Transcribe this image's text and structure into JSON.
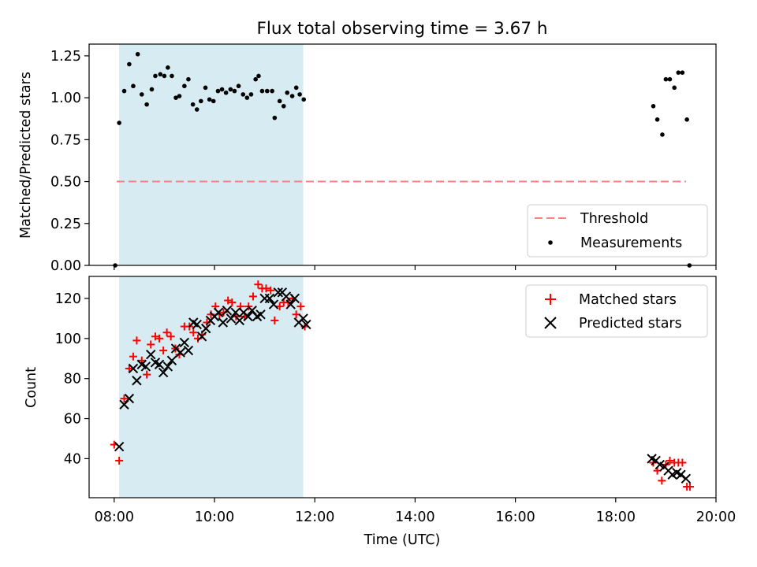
{
  "title": "Flux total observing time = 3.67 h",
  "top_panel": {
    "ylabel": "Matched/Predicted stars",
    "yticks": [
      "0.00",
      "0.25",
      "0.50",
      "0.75",
      "1.00",
      "1.25"
    ],
    "legend": {
      "threshold_label": "Threshold",
      "measurements_label": "Measurements"
    }
  },
  "bottom_panel": {
    "ylabel": "Count",
    "xlabel": "Time (UTC)",
    "yticks": [
      "40",
      "60",
      "80",
      "100",
      "120"
    ],
    "xticks": [
      "08:00",
      "10:00",
      "12:00",
      "14:00",
      "16:00",
      "18:00",
      "20:00"
    ],
    "legend": {
      "matched_label": "Matched stars",
      "predicted_label": "Predicted stars"
    }
  },
  "colors": {
    "shade": "#add8e6",
    "threshold": "#ff7f7f",
    "measurements": "#000000",
    "matched": "#ff0000",
    "predicted": "#000000"
  },
  "chart_data": [
    {
      "type": "scatter",
      "panel": "top",
      "title": "Flux total observing time = 3.67 h",
      "ylabel": "Matched/Predicted stars",
      "xlim": [
        7.5,
        20.0
      ],
      "ylim": [
        0,
        1.32
      ],
      "shaded_interval": [
        8.1,
        11.77
      ],
      "threshold": {
        "name": "Threshold",
        "y": 0.5,
        "x_range": [
          8.05,
          19.4
        ],
        "style": "dashed"
      },
      "series": [
        {
          "name": "Measurements",
          "points": [
            [
              8.02,
              0.0
            ],
            [
              8.1,
              0.85
            ],
            [
              8.2,
              1.04
            ],
            [
              8.3,
              1.2
            ],
            [
              8.38,
              1.07
            ],
            [
              8.47,
              1.26
            ],
            [
              8.55,
              1.02
            ],
            [
              8.65,
              0.96
            ],
            [
              8.75,
              1.05
            ],
            [
              8.82,
              1.13
            ],
            [
              8.92,
              1.14
            ],
            [
              9.0,
              1.13
            ],
            [
              9.07,
              1.18
            ],
            [
              9.15,
              1.13
            ],
            [
              9.23,
              1.0
            ],
            [
              9.3,
              1.01
            ],
            [
              9.4,
              1.07
            ],
            [
              9.48,
              1.11
            ],
            [
              9.57,
              0.96
            ],
            [
              9.65,
              0.93
            ],
            [
              9.73,
              0.98
            ],
            [
              9.82,
              1.06
            ],
            [
              9.9,
              0.99
            ],
            [
              9.98,
              0.98
            ],
            [
              10.07,
              1.04
            ],
            [
              10.15,
              1.05
            ],
            [
              10.23,
              1.03
            ],
            [
              10.32,
              1.05
            ],
            [
              10.4,
              1.04
            ],
            [
              10.48,
              1.07
            ],
            [
              10.57,
              1.02
            ],
            [
              10.65,
              1.0
            ],
            [
              10.73,
              1.02
            ],
            [
              10.82,
              1.11
            ],
            [
              10.88,
              1.13
            ],
            [
              10.95,
              1.04
            ],
            [
              11.05,
              1.04
            ],
            [
              11.15,
              1.04
            ],
            [
              11.2,
              0.88
            ],
            [
              11.3,
              0.98
            ],
            [
              11.38,
              0.95
            ],
            [
              11.45,
              1.03
            ],
            [
              11.55,
              1.01
            ],
            [
              11.63,
              1.06
            ],
            [
              11.7,
              1.02
            ],
            [
              11.78,
              0.99
            ],
            [
              18.75,
              0.95
            ],
            [
              18.83,
              0.87
            ],
            [
              18.93,
              0.78
            ],
            [
              19.0,
              1.11
            ],
            [
              19.08,
              1.11
            ],
            [
              19.17,
              1.06
            ],
            [
              19.25,
              1.15
            ],
            [
              19.33,
              1.15
            ],
            [
              19.42,
              0.87
            ],
            [
              19.47,
              0.0
            ]
          ]
        }
      ],
      "legend_position": "lower right"
    },
    {
      "type": "scatter",
      "panel": "bottom",
      "xlabel": "Time (UTC)",
      "ylabel": "Count",
      "xlim": [
        7.5,
        20.0
      ],
      "ylim": [
        20.5,
        131
      ],
      "x_unit": "hours (UTC)",
      "shaded_interval": [
        8.1,
        11.77
      ],
      "series": [
        {
          "name": "Matched stars",
          "marker": "+",
          "points": [
            [
              8.0,
              47
            ],
            [
              8.1,
              39
            ],
            [
              8.2,
              70
            ],
            [
              8.3,
              85
            ],
            [
              8.38,
              91
            ],
            [
              8.45,
              99
            ],
            [
              8.55,
              89
            ],
            [
              8.65,
              82
            ],
            [
              8.73,
              97
            ],
            [
              8.82,
              101
            ],
            [
              8.9,
              100
            ],
            [
              8.98,
              94
            ],
            [
              9.05,
              103
            ],
            [
              9.13,
              101
            ],
            [
              9.22,
              95
            ],
            [
              9.3,
              92
            ],
            [
              9.4,
              106
            ],
            [
              9.5,
              106
            ],
            [
              9.58,
              103
            ],
            [
              9.67,
              100
            ],
            [
              9.75,
              102
            ],
            [
              9.85,
              108
            ],
            [
              9.93,
              112
            ],
            [
              10.02,
              116
            ],
            [
              10.1,
              112
            ],
            [
              10.18,
              113
            ],
            [
              10.27,
              119
            ],
            [
              10.35,
              118
            ],
            [
              10.43,
              111
            ],
            [
              10.52,
              116
            ],
            [
              10.6,
              111
            ],
            [
              10.68,
              116
            ],
            [
              10.77,
              121
            ],
            [
              10.87,
              127
            ],
            [
              10.95,
              125
            ],
            [
              11.03,
              125
            ],
            [
              11.12,
              124
            ],
            [
              11.2,
              109
            ],
            [
              11.3,
              116
            ],
            [
              11.38,
              118
            ],
            [
              11.47,
              118
            ],
            [
              11.55,
              120
            ],
            [
              11.63,
              112
            ],
            [
              11.72,
              116
            ],
            [
              11.8,
              106
            ],
            [
              18.75,
              38
            ],
            [
              18.83,
              34
            ],
            [
              18.92,
              29
            ],
            [
              19.0,
              37
            ],
            [
              19.08,
              39
            ],
            [
              19.17,
              38
            ],
            [
              19.25,
              38
            ],
            [
              19.33,
              38
            ],
            [
              19.42,
              26
            ],
            [
              19.48,
              26
            ]
          ]
        },
        {
          "name": "Predicted stars",
          "marker": "x",
          "points": [
            [
              8.1,
              46
            ],
            [
              8.2,
              67
            ],
            [
              8.3,
              70
            ],
            [
              8.38,
              85
            ],
            [
              8.45,
              79
            ],
            [
              8.55,
              87
            ],
            [
              8.63,
              86
            ],
            [
              8.73,
              92
            ],
            [
              8.82,
              88
            ],
            [
              8.9,
              87
            ],
            [
              8.98,
              83
            ],
            [
              9.07,
              86
            ],
            [
              9.15,
              89
            ],
            [
              9.23,
              95
            ],
            [
              9.32,
              93
            ],
            [
              9.4,
              98
            ],
            [
              9.48,
              94
            ],
            [
              9.58,
              108
            ],
            [
              9.65,
              107
            ],
            [
              9.75,
              101
            ],
            [
              9.83,
              105
            ],
            [
              9.92,
              109
            ],
            [
              10.0,
              111
            ],
            [
              10.08,
              113
            ],
            [
              10.17,
              108
            ],
            [
              10.25,
              114
            ],
            [
              10.33,
              110
            ],
            [
              10.42,
              113
            ],
            [
              10.5,
              109
            ],
            [
              10.58,
              113
            ],
            [
              10.67,
              111
            ],
            [
              10.75,
              114
            ],
            [
              10.85,
              111
            ],
            [
              10.92,
              112
            ],
            [
              11.0,
              120
            ],
            [
              11.1,
              120
            ],
            [
              11.18,
              117
            ],
            [
              11.27,
              123
            ],
            [
              11.35,
              123
            ],
            [
              11.43,
              121
            ],
            [
              11.52,
              117
            ],
            [
              11.6,
              120
            ],
            [
              11.68,
              108
            ],
            [
              11.77,
              110
            ],
            [
              11.83,
              107
            ],
            [
              18.72,
              40
            ],
            [
              18.8,
              39
            ],
            [
              18.88,
              37
            ],
            [
              18.97,
              36
            ],
            [
              19.05,
              34
            ],
            [
              19.13,
              32
            ],
            [
              19.22,
              33
            ],
            [
              19.3,
              32
            ],
            [
              19.4,
              30
            ]
          ]
        }
      ],
      "legend_position": "upper right"
    }
  ]
}
